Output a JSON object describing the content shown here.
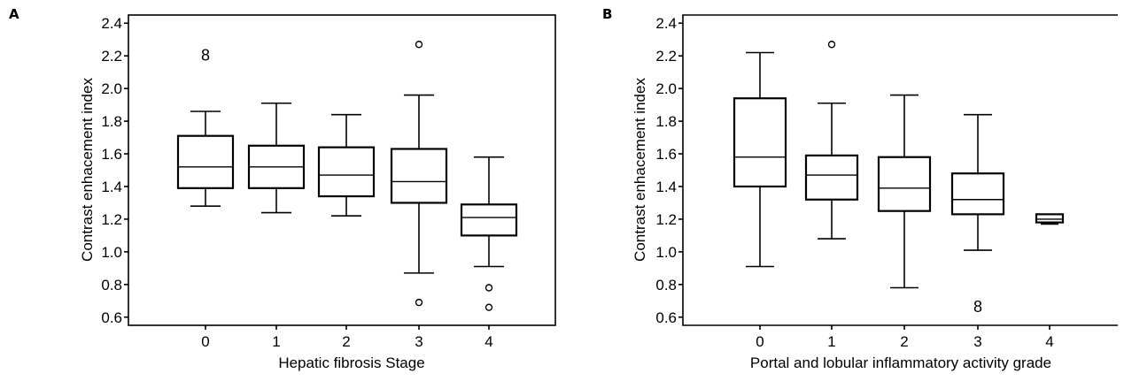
{
  "chart_data": [
    {
      "panel": "A",
      "type": "box",
      "xlabel": "Hepatic fibrosis Stage",
      "ylabel": "Contrast enhacement index",
      "ylim": [
        0.55,
        2.45
      ],
      "yticks": [
        "0.6",
        "0.8",
        "1.0",
        "1.2",
        "1.4",
        "1.6",
        "1.8",
        "2.0",
        "2.2",
        "2.4"
      ],
      "categories": [
        "0",
        "1",
        "2",
        "3",
        "4"
      ],
      "boxes": [
        {
          "category": "0",
          "whisker_low": 1.28,
          "q1": 1.39,
          "median": 1.52,
          "q3": 1.71,
          "whisker_high": 1.86,
          "outliers": []
        },
        {
          "category": "1",
          "whisker_low": 1.24,
          "q1": 1.39,
          "median": 1.52,
          "q3": 1.65,
          "whisker_high": 1.91,
          "outliers": []
        },
        {
          "category": "2",
          "whisker_low": 1.22,
          "q1": 1.34,
          "median": 1.47,
          "q3": 1.64,
          "whisker_high": 1.84,
          "outliers": []
        },
        {
          "category": "3",
          "whisker_low": 0.87,
          "q1": 1.3,
          "median": 1.43,
          "q3": 1.63,
          "whisker_high": 1.96,
          "outliers": [
            2.27,
            0.69
          ]
        },
        {
          "category": "4",
          "whisker_low": 0.91,
          "q1": 1.1,
          "median": 1.21,
          "q3": 1.29,
          "whisker_high": 1.58,
          "outliers": [
            0.78,
            0.66
          ]
        }
      ],
      "labeled_outliers": [
        {
          "category": "0",
          "y": 2.21,
          "label": "8"
        }
      ]
    },
    {
      "panel": "B",
      "type": "box",
      "xlabel": "Portal and lobular inflammatory activity grade",
      "ylabel": "Contrast enhacement index",
      "ylim": [
        0.55,
        2.45
      ],
      "yticks": [
        "0.6",
        "0.8",
        "1.0",
        "1.2",
        "1.4",
        "1.6",
        "1.8",
        "2.0",
        "2.2",
        "2.4"
      ],
      "categories": [
        "0",
        "1",
        "2",
        "3",
        "4"
      ],
      "boxes": [
        {
          "category": "0",
          "whisker_low": 0.91,
          "q1": 1.4,
          "median": 1.58,
          "q3": 1.94,
          "whisker_high": 2.22,
          "outliers": []
        },
        {
          "category": "1",
          "whisker_low": 1.08,
          "q1": 1.32,
          "median": 1.47,
          "q3": 1.59,
          "whisker_high": 1.91,
          "outliers": [
            2.27
          ]
        },
        {
          "category": "2",
          "whisker_low": 0.78,
          "q1": 1.25,
          "median": 1.39,
          "q3": 1.58,
          "whisker_high": 1.96,
          "outliers": []
        },
        {
          "category": "3",
          "whisker_low": 1.01,
          "q1": 1.23,
          "median": 1.32,
          "q3": 1.48,
          "whisker_high": 1.84,
          "outliers": []
        },
        {
          "category": "4",
          "whisker_low": 1.17,
          "q1": 1.18,
          "median": 1.2,
          "q3": 1.23,
          "whisker_high": 1.23,
          "outliers": []
        }
      ],
      "labeled_outliers": [
        {
          "category": "3",
          "y": 0.67,
          "label": "8"
        }
      ]
    }
  ]
}
